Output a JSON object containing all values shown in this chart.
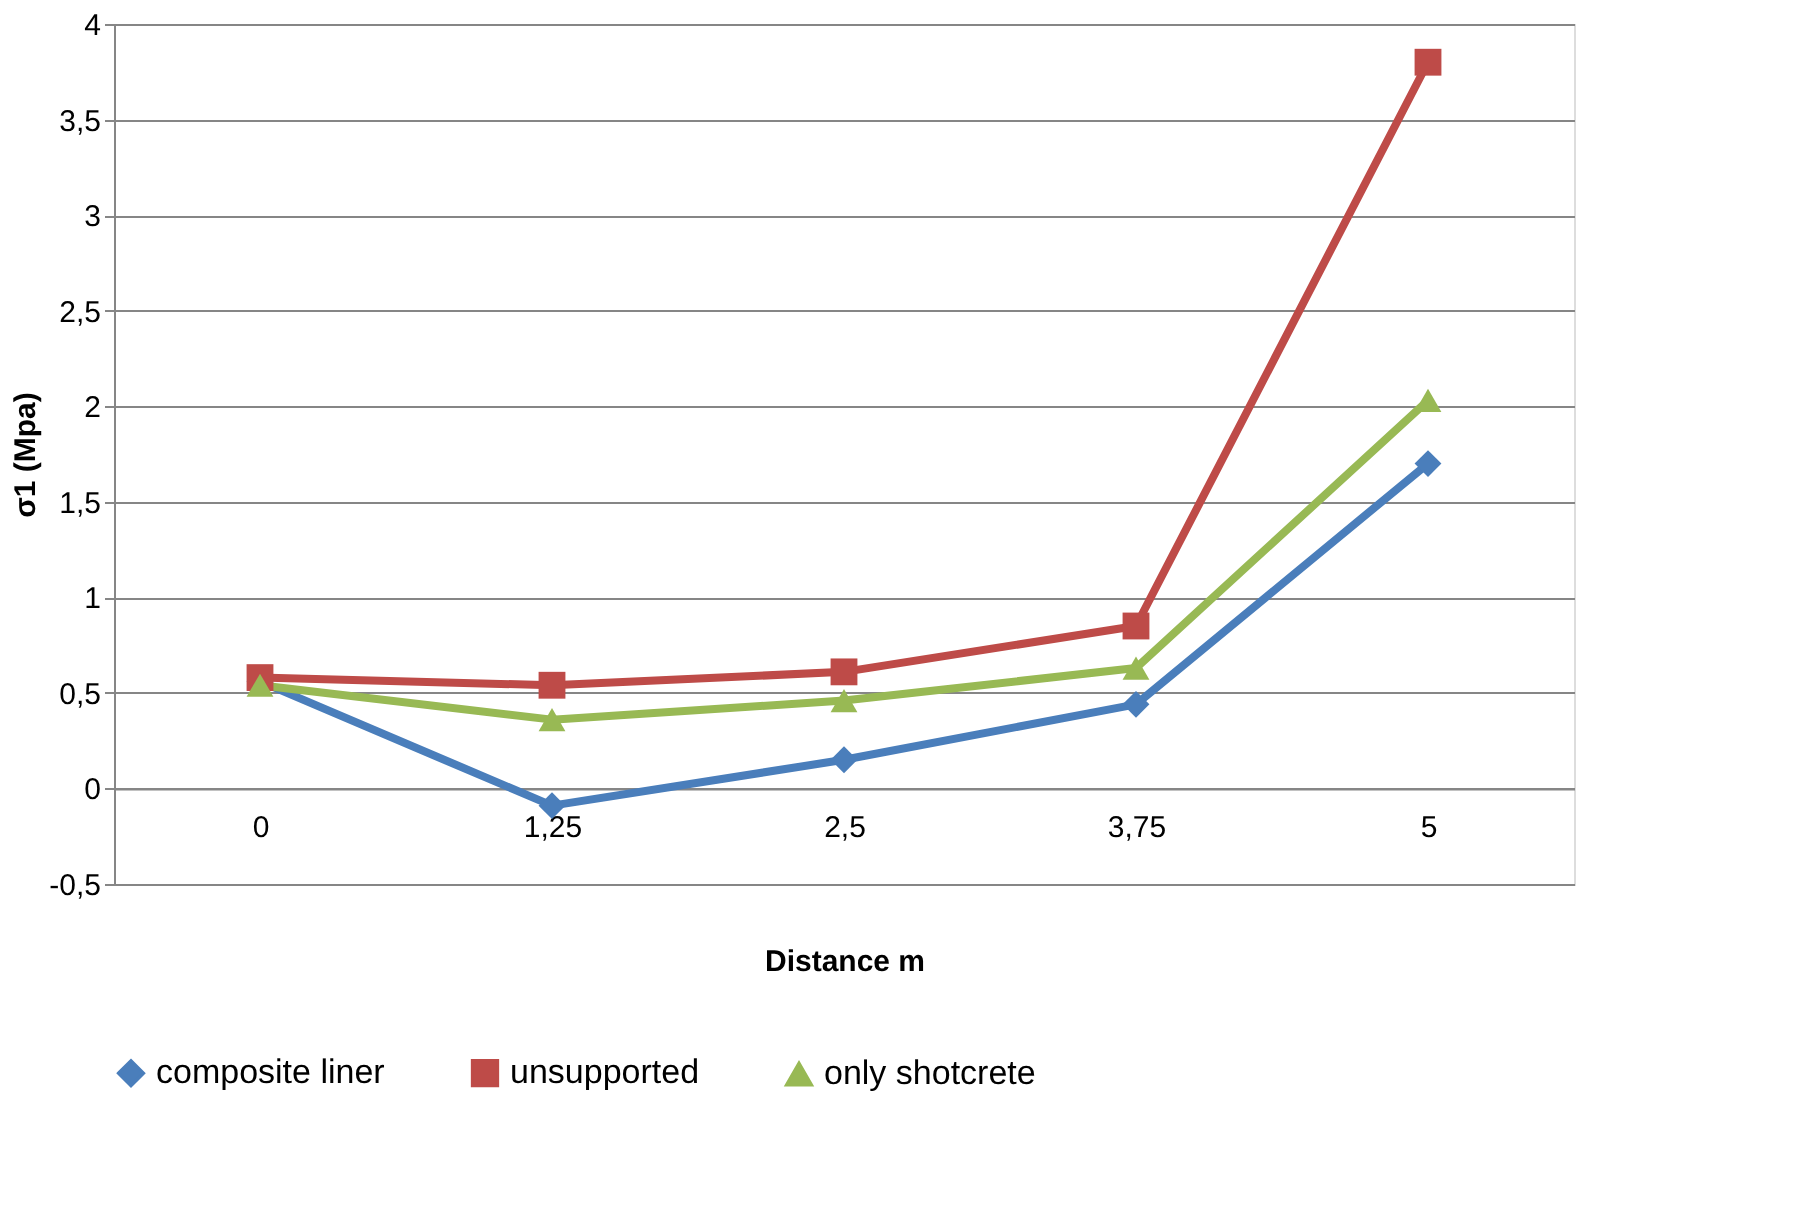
{
  "chart_data": {
    "type": "line",
    "xlabel": "Distance m",
    "ylabel": "σ1 (Mpa)",
    "categories": [
      "0",
      "1,25",
      "2,5",
      "3,75",
      "5"
    ],
    "series": [
      {
        "name": "composite liner",
        "color": "#4a7ebb",
        "marker": "diamond",
        "values": [
          0.56,
          -0.09,
          0.15,
          0.44,
          1.7
        ]
      },
      {
        "name": "unsupported",
        "color": "#be4b48",
        "marker": "square",
        "values": [
          0.58,
          0.54,
          0.61,
          0.85,
          3.8
        ]
      },
      {
        "name": "only shotcrete",
        "color": "#98b954",
        "marker": "triangle",
        "values": [
          0.54,
          0.36,
          0.46,
          0.63,
          2.03
        ]
      }
    ],
    "ylim": [
      -0.5,
      4
    ],
    "yticks": [
      {
        "value": -0.5,
        "label": "-0,5"
      },
      0,
      {
        "value": 0.5,
        "label": "0,5"
      },
      1,
      {
        "value": 1.5,
        "label": "1,5"
      },
      2,
      {
        "value": 2.5,
        "label": "2,5"
      },
      3,
      {
        "value": 3.5,
        "label": "3,5"
      },
      4
    ],
    "grid": "y",
    "legend": "bottom",
    "line_style": "solid"
  }
}
